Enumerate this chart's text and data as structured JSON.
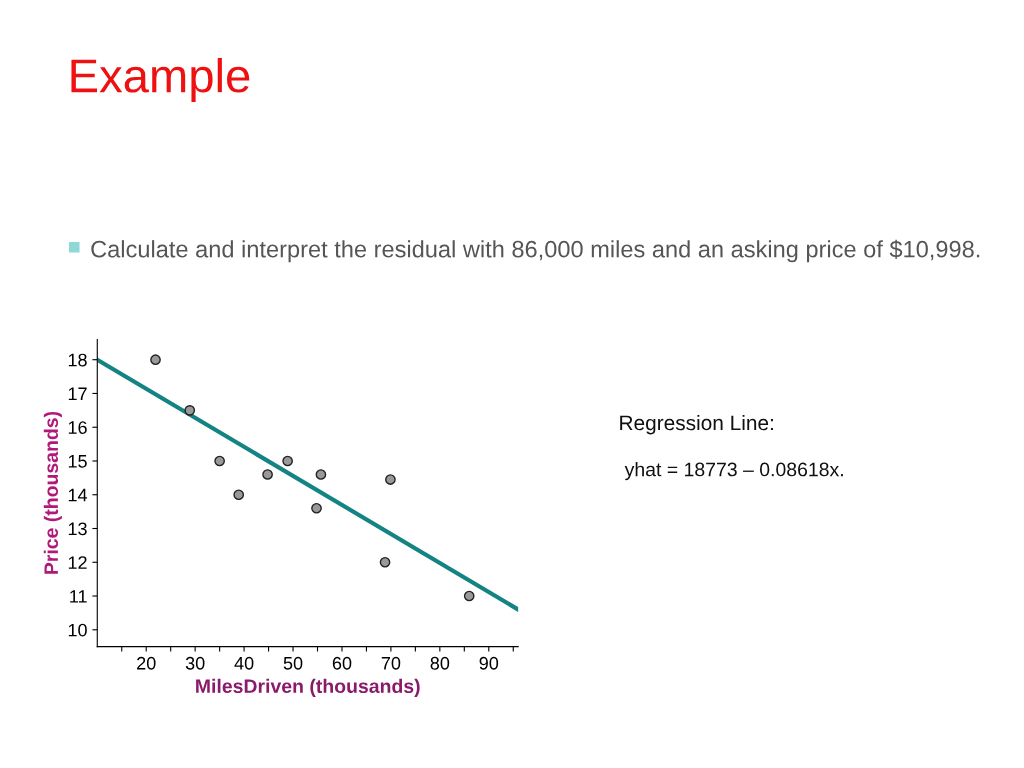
{
  "chart_data": {
    "type": "scatter",
    "title": "Example",
    "subtitle": "Calculate and interpret the residual with 86,000 miles and an asking price of $10,998.",
    "xlabel": "MilesDriven (thousands)",
    "ylabel": "Price (thousands)",
    "annotations": [
      "Regression Line:",
      "yhat = 18773 – 0.08618x."
    ],
    "series": [
      {
        "color": "#999999",
        "x": [
          21.9,
          28.9,
          35.0,
          38.9,
          44.8,
          48.9,
          55.7,
          54.8,
          69.9,
          68.8,
          86.0
        ],
        "values": [
          18.0,
          16.5,
          15.0,
          14.0,
          14.6,
          15.0,
          14.6,
          13.6,
          14.45,
          12.0,
          11.0
        ]
      },
      {
        "type": "line",
        "marker": "none",
        "color": "#138383",
        "x": [
          10,
          96
        ],
        "values": [
          18.0,
          10.6
        ]
      }
    ],
    "xlim": [
      10,
      96
    ],
    "ylim": [
      9.5,
      18.6
    ],
    "xticks": [
      {
        "value": 15,
        "label": null
      },
      20,
      {
        "value": 25,
        "label": null
      },
      30,
      {
        "value": 35,
        "label": null
      },
      40,
      {
        "value": 45,
        "label": null
      },
      50,
      {
        "value": 55,
        "label": null
      },
      60,
      {
        "value": 65,
        "label": null
      },
      70,
      {
        "value": 75,
        "label": null
      },
      80,
      {
        "value": 85,
        "label": null
      },
      90,
      {
        "value": 95,
        "label": null
      }
    ],
    "yticks": [
      10,
      11,
      12,
      13,
      14,
      15,
      16,
      17,
      18
    ],
    "grid": false,
    "legend": false,
    "marker": "circle",
    "line_style": "solid"
  }
}
